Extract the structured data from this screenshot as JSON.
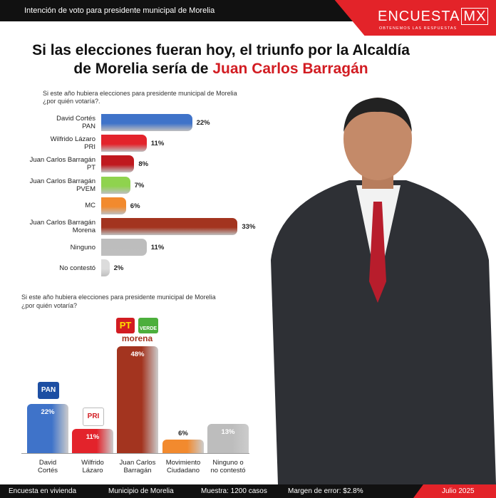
{
  "header": {
    "subtitle": "Intención de voto para presidente municipal de Morelia",
    "brand": "ENCUESTA",
    "brand_box": "MX",
    "tagline": "OBTENEMOS LAS RESPUESTAS"
  },
  "headline": {
    "text": "Si las elecciones fueran hoy, el triunfo por la Alcaldía de Morelia sería de",
    "highlight": "Juan Carlos Barragán"
  },
  "logos": {
    "pan": "PAN",
    "pri": "PRI",
    "pt": "PT",
    "verde": "VERDE",
    "morena": "morena"
  },
  "chart_data": [
    {
      "type": "hbar",
      "title": "Si este año hubiera elecciones para presidente municipal de Morelia ¿por quién votaría?.",
      "categories": [
        "David Cortés\nPAN",
        "Wilfrido Lázaro\nPRI",
        "Juan Carlos Barragán\nPT",
        "Juan Carlos Barragán\nPVEM",
        "MC",
        "Juan Carlos Barragán\nMorena",
        "Ninguno",
        "No contestó"
      ],
      "values": [
        22,
        11,
        8,
        7,
        6,
        33,
        11,
        2
      ],
      "value_labels": [
        "22%",
        "11%",
        "8%",
        "7%",
        "6%",
        "33%",
        "11%",
        "2%"
      ],
      "colors": [
        "#3f73c9",
        "#e3232b",
        "#c0181e",
        "#8fd34e",
        "#f28a2e",
        "#a3341f",
        "#bdbdbd",
        "#dcdcdc"
      ]
    },
    {
      "type": "bar",
      "title": "Si este año hubiera elecciones para presidente municipal de Morelia ¿por quién votaría?",
      "categories": [
        "David\nCortés",
        "Wilfrido\nLázaro",
        "Juan Carlos\nBarragán",
        "Movimiento\nCiudadano",
        "Ninguno o\nno contestó"
      ],
      "values": [
        22,
        11,
        48,
        6,
        13
      ],
      "value_labels": [
        "22%",
        "11%",
        "48%",
        "6%",
        "13%"
      ],
      "colors": [
        "#3f73c9",
        "#e3232b",
        "#a3341f",
        "#f28a2e",
        "#bdbdbd"
      ]
    }
  ],
  "footer": {
    "items": [
      "Encuesta en vivienda",
      "Municipio de Morelia",
      "Muestra: 1200 casos",
      "Margen de error: $2.8%",
      "Julio 2025"
    ]
  }
}
